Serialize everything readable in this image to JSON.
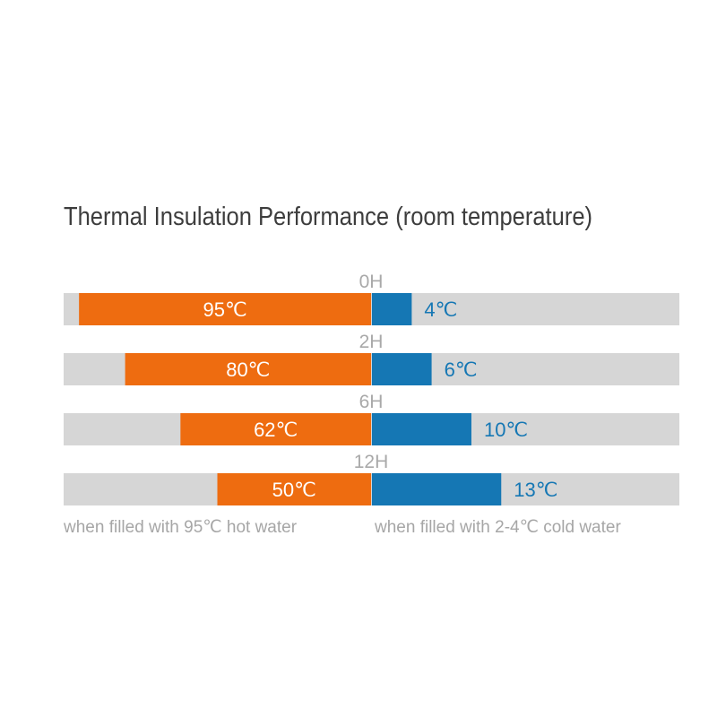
{
  "chart_data": {
    "type": "bar",
    "title": "Thermal Insulation Performance (room temperature)",
    "categories": [
      "0H",
      "2H",
      "6H",
      "12H"
    ],
    "series": [
      {
        "values": [
          95,
          80,
          62,
          50
        ],
        "labels": [
          "95℃",
          "80℃",
          "62℃",
          "50℃"
        ],
        "color": "#ee6c10"
      },
      {
        "values": [
          4,
          6,
          10,
          13
        ],
        "labels": [
          "4℃",
          "6℃",
          "10℃",
          "13℃"
        ],
        "color": "#1577b4"
      }
    ],
    "track_color": "#d6d6d6",
    "captions": {
      "hot": "when filled with 95℃ hot water",
      "cold": "when filled with 2-4℃ cold water"
    }
  }
}
